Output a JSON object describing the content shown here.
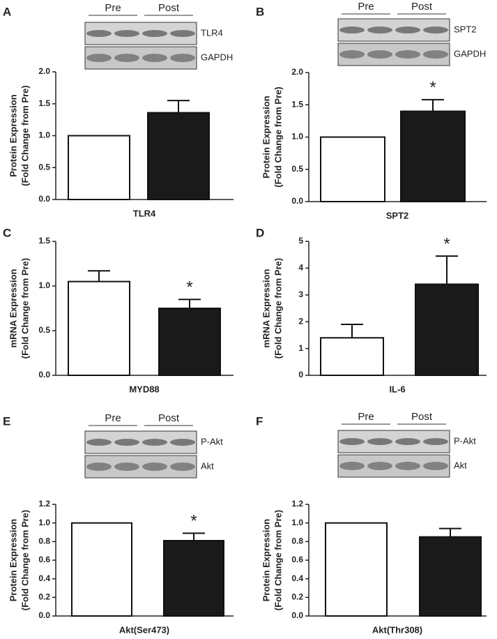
{
  "chart_data": [
    {
      "type": "bar",
      "panel": "A",
      "blot": {
        "groups": [
          "Pre",
          "Post"
        ],
        "bands": [
          "TLR4",
          "GAPDH"
        ]
      },
      "ylabel": [
        "Protein Expression",
        "(Fold Change from Pre)"
      ],
      "xlabel": "TLR4",
      "values": [
        1.0,
        1.36
      ],
      "errors": [
        null,
        0.19
      ],
      "colors": [
        "#ffffff",
        "#1a1a1a"
      ],
      "ylim": [
        0,
        2.0
      ],
      "yticks": [
        {
          "value": 0,
          "label": "0.0"
        },
        {
          "value": 0.5,
          "label": "0.5"
        },
        {
          "value": 1.0,
          "label": "1.0"
        },
        {
          "value": 1.5,
          "label": "1.5"
        },
        {
          "value": 2.0,
          "label": "2.0"
        }
      ],
      "annotations": [
        null,
        null
      ]
    },
    {
      "type": "bar",
      "panel": "B",
      "blot": {
        "groups": [
          "Pre",
          "Post"
        ],
        "bands": [
          "SPT2",
          "GAPDH"
        ]
      },
      "ylabel": [
        "Protein Expression",
        "(Fold Change from Pre)"
      ],
      "xlabel": "SPT2",
      "values": [
        1.0,
        1.4
      ],
      "errors": [
        null,
        0.18
      ],
      "colors": [
        "#ffffff",
        "#1a1a1a"
      ],
      "ylim": [
        0,
        2.0
      ],
      "yticks": [
        {
          "value": 0,
          "label": "0.0"
        },
        {
          "value": 0.5,
          "label": "0.5"
        },
        {
          "value": 1.0,
          "label": "1.0"
        },
        {
          "value": 1.5,
          "label": "1.5"
        },
        {
          "value": 2.0,
          "label": "2.0"
        }
      ],
      "annotations": [
        null,
        "*"
      ]
    },
    {
      "type": "bar",
      "panel": "C",
      "ylabel": [
        "mRNA Expression",
        "(Fold Change from Pre)"
      ],
      "xlabel": "MYD88",
      "values": [
        1.05,
        0.75
      ],
      "errors": [
        0.12,
        0.1
      ],
      "colors": [
        "#ffffff",
        "#1a1a1a"
      ],
      "ylim": [
        0,
        1.5
      ],
      "yticks": [
        {
          "value": 0,
          "label": "0.0"
        },
        {
          "value": 0.5,
          "label": "0.5"
        },
        {
          "value": 1.0,
          "label": "1.0"
        },
        {
          "value": 1.5,
          "label": "1.5"
        }
      ],
      "annotations": [
        null,
        "*"
      ]
    },
    {
      "type": "bar",
      "panel": "D",
      "ylabel": [
        "mRNA Expression",
        "(Fold Change from Pre)"
      ],
      "xlabel": "IL-6",
      "values": [
        1.4,
        3.4
      ],
      "errors": [
        0.5,
        1.05
      ],
      "colors": [
        "#ffffff",
        "#1a1a1a"
      ],
      "ylim": [
        0,
        5
      ],
      "yticks": [
        0,
        1,
        2,
        3,
        4,
        5
      ],
      "annotations": [
        null,
        "*"
      ]
    },
    {
      "type": "bar",
      "panel": "E",
      "blot": {
        "groups": [
          "Pre",
          "Post"
        ],
        "bands": [
          "P-Akt",
          "Akt"
        ]
      },
      "ylabel": [
        "Protein Expression",
        "(Fold Change from Pre)"
      ],
      "xlabel": "Akt(Ser473)",
      "values": [
        1.0,
        0.81
      ],
      "errors": [
        null,
        0.08
      ],
      "colors": [
        "#ffffff",
        "#1a1a1a"
      ],
      "ylim": [
        0,
        1.2
      ],
      "yticks": [
        {
          "value": 0,
          "label": "0.0"
        },
        {
          "value": 0.2,
          "label": "0.2"
        },
        {
          "value": 0.4,
          "label": "0.4"
        },
        {
          "value": 0.6,
          "label": "0.6"
        },
        {
          "value": 0.8,
          "label": "0.8"
        },
        {
          "value": 1.0,
          "label": "1.0"
        },
        {
          "value": 1.2,
          "label": "1.2"
        }
      ],
      "annotations": [
        null,
        "*"
      ]
    },
    {
      "type": "bar",
      "panel": "F",
      "blot": {
        "groups": [
          "Pre",
          "Post"
        ],
        "bands": [
          "P-Akt",
          "Akt"
        ]
      },
      "ylabel": [
        "Protein Expression",
        "(Fold Change from Pre)"
      ],
      "xlabel": "Akt(Thr308)",
      "values": [
        1.0,
        0.85
      ],
      "errors": [
        null,
        0.09
      ],
      "colors": [
        "#ffffff",
        "#1a1a1a"
      ],
      "ylim": [
        0,
        1.2
      ],
      "yticks": [
        {
          "value": 0,
          "label": "0.0"
        },
        {
          "value": 0.2,
          "label": "0.2"
        },
        {
          "value": 0.4,
          "label": "0.4"
        },
        {
          "value": 0.6,
          "label": "0.6"
        },
        {
          "value": 0.8,
          "label": "0.8"
        },
        {
          "value": 1.0,
          "label": "1.0"
        },
        {
          "value": 1.2,
          "label": "1.2"
        }
      ],
      "annotations": [
        null,
        null
      ]
    }
  ]
}
